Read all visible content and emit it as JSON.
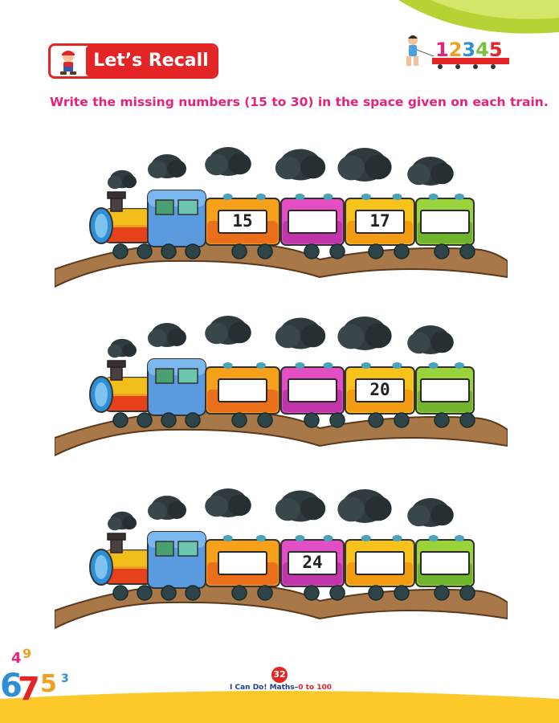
{
  "header": {
    "badge_label": "Let’s Recall",
    "deco_digits": [
      "1",
      "2",
      "3",
      "4",
      "5"
    ]
  },
  "instruction": "Write the missing numbers (15 to 30) in the space given on each train.",
  "trains": [
    {
      "wagons": [
        "15",
        "",
        "17",
        ""
      ]
    },
    {
      "wagons": [
        "",
        "",
        "20",
        ""
      ]
    },
    {
      "wagons": [
        "",
        "24",
        "",
        ""
      ]
    }
  ],
  "footer": {
    "page_number": "32",
    "book_title": "I Can Do! Maths–",
    "book_range": "0 to 100"
  },
  "corner_digits": [
    "4",
    "9",
    "6",
    "7",
    "5",
    "3"
  ],
  "colors": {
    "accent_red": "#e32526",
    "instruction_pink": "#e5227a",
    "footer_yellow": "#fdc92a",
    "corner_green": "#b5d334"
  }
}
